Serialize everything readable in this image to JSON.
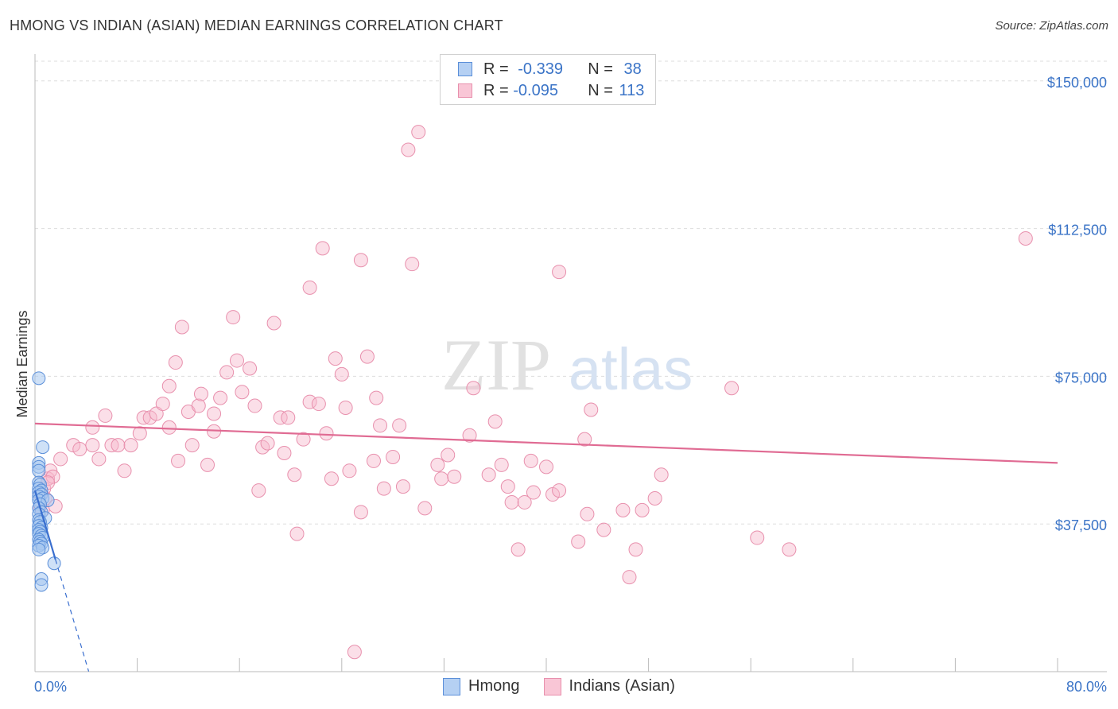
{
  "title": "HMONG VS INDIAN (ASIAN) MEDIAN EARNINGS CORRELATION CHART",
  "source": "Source: ZipAtlas.com",
  "watermark": {
    "zip": "ZIP",
    "atlas": "atlas"
  },
  "legend": {
    "rows": [
      {
        "r_label": "R =",
        "r_value": "-0.339",
        "n_label": "N =",
        "n_value": "38"
      },
      {
        "r_label": "R =",
        "r_value": "-0.095",
        "n_label": "N =",
        "n_value": "113"
      }
    ]
  },
  "bottom_legend": {
    "series1": "Hmong",
    "series2": "Indians (Asian)"
  },
  "colors": {
    "hmong_fill": "#a8c8f0",
    "hmong_stroke": "#5b8fd9",
    "hmong_line": "#3a6fcf",
    "indian_fill": "#f6b8cb",
    "indian_stroke": "#e890ad",
    "indian_line": "#e06b93",
    "axis_label": "#3b74c7",
    "grid": "#dddddd"
  },
  "chart_data": {
    "type": "scatter",
    "title": "HMONG VS INDIAN (ASIAN) MEDIAN EARNINGS CORRELATION CHART",
    "xlabel": "",
    "ylabel": "Median Earnings",
    "xlim": [
      0,
      80
    ],
    "ylim": [
      0,
      155000
    ],
    "x_tick_labels": {
      "min": "0.0%",
      "max": "80.0%"
    },
    "y_ticks": [
      {
        "value": 37500,
        "label": "$37,500"
      },
      {
        "value": 75000,
        "label": "$75,000"
      },
      {
        "value": 112500,
        "label": "$112,500"
      },
      {
        "value": 150000,
        "label": "$150,000"
      }
    ],
    "series": [
      {
        "name": "Hmong",
        "trend": {
          "x0": 0,
          "y0": 46000,
          "x1": 1.6,
          "y1": 28500,
          "dash_to_x": 4.2
        },
        "points": [
          [
            0.3,
            74500
          ],
          [
            0.6,
            57000
          ],
          [
            0.3,
            53000
          ],
          [
            0.3,
            52000
          ],
          [
            0.3,
            51000
          ],
          [
            0.3,
            48000
          ],
          [
            0.4,
            47500
          ],
          [
            0.3,
            46500
          ],
          [
            0.5,
            46000
          ],
          [
            0.3,
            45500
          ],
          [
            0.5,
            45000
          ],
          [
            0.3,
            44500
          ],
          [
            0.6,
            44000
          ],
          [
            0.3,
            43500
          ],
          [
            1.0,
            43500
          ],
          [
            0.4,
            42500
          ],
          [
            0.3,
            41500
          ],
          [
            0.5,
            40500
          ],
          [
            0.3,
            40000
          ],
          [
            0.8,
            39000
          ],
          [
            0.3,
            38500
          ],
          [
            0.4,
            38000
          ],
          [
            0.3,
            37000
          ],
          [
            0.5,
            36500
          ],
          [
            0.3,
            36000
          ],
          [
            0.4,
            35500
          ],
          [
            0.3,
            35000
          ],
          [
            0.5,
            34500
          ],
          [
            0.6,
            34000
          ],
          [
            0.3,
            33500
          ],
          [
            0.4,
            33000
          ],
          [
            0.5,
            32500
          ],
          [
            0.3,
            32000
          ],
          [
            0.6,
            31500
          ],
          [
            0.3,
            31000
          ],
          [
            1.5,
            27500
          ],
          [
            0.5,
            23500
          ],
          [
            0.5,
            22000
          ]
        ]
      },
      {
        "name": "Indians (Asian)",
        "trend": {
          "x0": 0,
          "y0": 63000,
          "x1": 80,
          "y1": 53000
        },
        "points": [
          [
            0.4,
            42000
          ],
          [
            0.4,
            45000
          ],
          [
            0.6,
            41000
          ],
          [
            0.8,
            44000
          ],
          [
            0.7,
            46500
          ],
          [
            1.0,
            49000
          ],
          [
            1.2,
            51000
          ],
          [
            1.4,
            49500
          ],
          [
            1.0,
            48000
          ],
          [
            1.6,
            42000
          ],
          [
            2.0,
            54000
          ],
          [
            3.0,
            57500
          ],
          [
            3.5,
            56500
          ],
          [
            4.5,
            57500
          ],
          [
            5.0,
            54000
          ],
          [
            5.5,
            65000
          ],
          [
            4.5,
            62000
          ],
          [
            6.0,
            57500
          ],
          [
            6.5,
            57500
          ],
          [
            7.0,
            51000
          ],
          [
            7.5,
            57500
          ],
          [
            8.5,
            64500
          ],
          [
            8.2,
            60500
          ],
          [
            9.0,
            64500
          ],
          [
            9.5,
            65500
          ],
          [
            10.0,
            68000
          ],
          [
            10.5,
            62000
          ],
          [
            10.5,
            72500
          ],
          [
            11.0,
            78500
          ],
          [
            11.2,
            53500
          ],
          [
            11.5,
            87500
          ],
          [
            12.0,
            66000
          ],
          [
            12.3,
            57500
          ],
          [
            12.8,
            67500
          ],
          [
            13.0,
            70500
          ],
          [
            13.5,
            52500
          ],
          [
            14.0,
            61000
          ],
          [
            14.0,
            65500
          ],
          [
            14.5,
            69500
          ],
          [
            15.0,
            76000
          ],
          [
            15.5,
            90000
          ],
          [
            15.8,
            79000
          ],
          [
            16.2,
            71000
          ],
          [
            16.8,
            77000
          ],
          [
            17.2,
            67500
          ],
          [
            17.5,
            46000
          ],
          [
            17.8,
            57000
          ],
          [
            18.2,
            58000
          ],
          [
            18.7,
            88500
          ],
          [
            19.2,
            64500
          ],
          [
            19.5,
            55500
          ],
          [
            19.8,
            64500
          ],
          [
            20.3,
            50000
          ],
          [
            20.5,
            35000
          ],
          [
            21.0,
            59000
          ],
          [
            21.5,
            68500
          ],
          [
            21.5,
            97500
          ],
          [
            22.2,
            68000
          ],
          [
            22.5,
            107500
          ],
          [
            22.8,
            60500
          ],
          [
            23.2,
            49000
          ],
          [
            23.5,
            79500
          ],
          [
            24.0,
            75500
          ],
          [
            24.3,
            67000
          ],
          [
            24.6,
            51000
          ],
          [
            25.0,
            5000
          ],
          [
            25.5,
            104500
          ],
          [
            25.5,
            40500
          ],
          [
            26.0,
            80000
          ],
          [
            26.5,
            53500
          ],
          [
            26.7,
            69500
          ],
          [
            27.0,
            62500
          ],
          [
            27.3,
            46500
          ],
          [
            28.0,
            54500
          ],
          [
            28.5,
            62500
          ],
          [
            28.8,
            47000
          ],
          [
            29.2,
            132500
          ],
          [
            29.5,
            103500
          ],
          [
            30.0,
            137000
          ],
          [
            30.5,
            41500
          ],
          [
            31.5,
            52500
          ],
          [
            31.8,
            49000
          ],
          [
            32.3,
            55000
          ],
          [
            32.8,
            49500
          ],
          [
            34.0,
            60000
          ],
          [
            34.3,
            72000
          ],
          [
            35.5,
            50000
          ],
          [
            36.0,
            63500
          ],
          [
            36.5,
            52500
          ],
          [
            37.0,
            47000
          ],
          [
            37.3,
            43000
          ],
          [
            37.8,
            31000
          ],
          [
            38.3,
            43000
          ],
          [
            38.8,
            53500
          ],
          [
            39.0,
            45500
          ],
          [
            40.0,
            52000
          ],
          [
            40.5,
            45000
          ],
          [
            41.0,
            46000
          ],
          [
            41.0,
            101500
          ],
          [
            42.5,
            33000
          ],
          [
            43.0,
            59000
          ],
          [
            43.2,
            40000
          ],
          [
            43.5,
            66500
          ],
          [
            44.5,
            36000
          ],
          [
            46.0,
            41000
          ],
          [
            46.5,
            24000
          ],
          [
            47.0,
            31000
          ],
          [
            47.5,
            41000
          ],
          [
            48.5,
            44000
          ],
          [
            49.0,
            50000
          ],
          [
            54.5,
            72000
          ],
          [
            56.5,
            34000
          ],
          [
            59.0,
            31000
          ],
          [
            77.5,
            110000
          ]
        ]
      }
    ]
  }
}
